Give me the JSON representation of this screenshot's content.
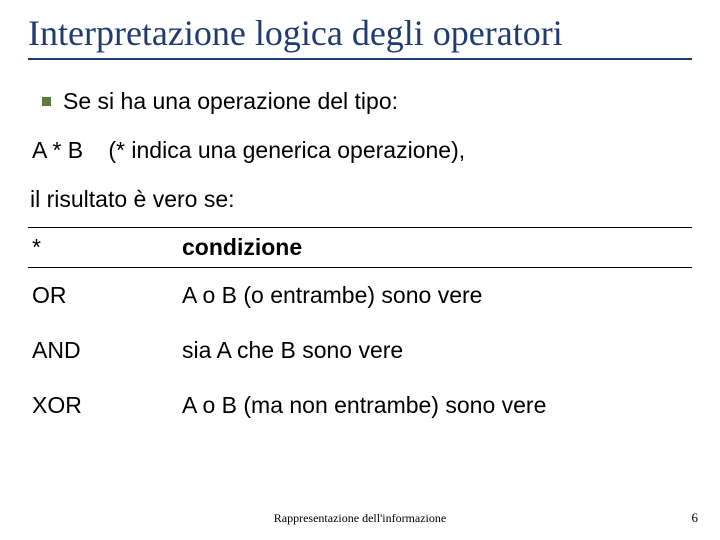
{
  "colors": {
    "title_border": "#1f3b70",
    "title_text": "#1f3b70",
    "bullet": "#5a7a3a",
    "body_text": "#000000",
    "background": "#ffffff"
  },
  "typography": {
    "title_fontsize": 36,
    "body_fontsize": 23,
    "footer_fontsize": 12
  },
  "title": "Interpretazione logica degli operatori",
  "bullet": "Se si ha una operazione del tipo:",
  "expr": {
    "lhs": "A * B",
    "note": "(* indica una generica operazione),"
  },
  "result_line": "il risultato è vero se:",
  "table": {
    "headers": {
      "op": "*",
      "cond": "condizione"
    },
    "rows": [
      {
        "op": "OR",
        "cond": "A o B (o entrambe) sono vere"
      },
      {
        "op": "AND",
        "cond": "sia A che B sono vere"
      },
      {
        "op": "XOR",
        "cond": "A o B (ma non entrambe) sono vere"
      }
    ]
  },
  "footer": "Rappresentazione dell'informazione",
  "page_number": "6"
}
